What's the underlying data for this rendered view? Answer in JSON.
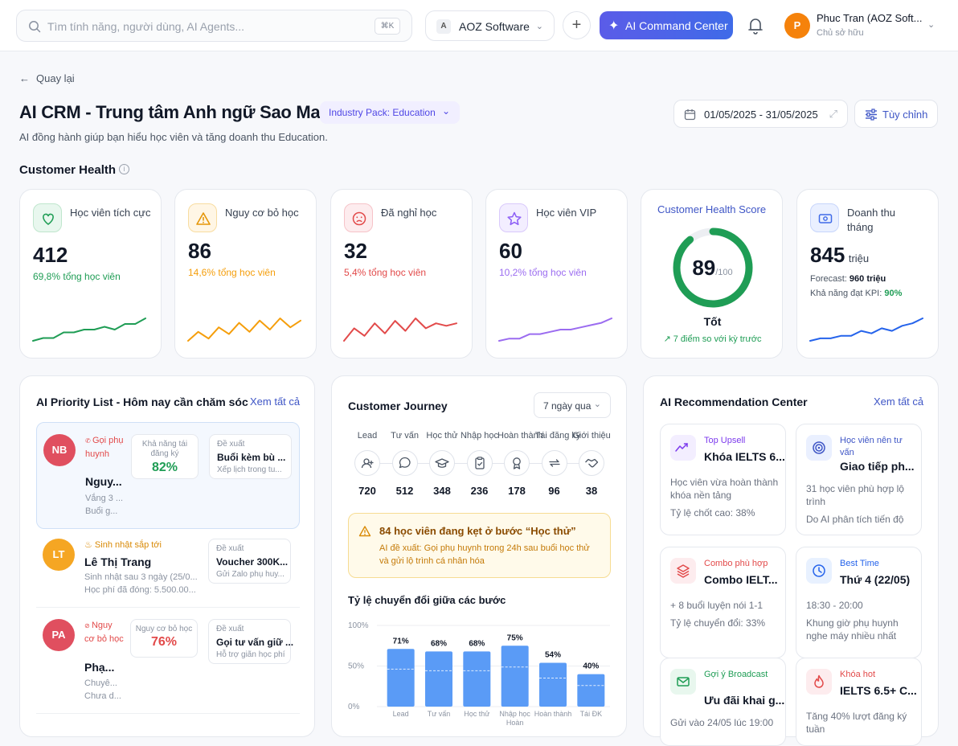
{
  "topbar": {
    "search_placeholder": "Tìm tính năng, người dùng, AI Agents...",
    "shortcut": "⌘K",
    "org_badge": "A",
    "org_name": "AOZ Software",
    "ai_button": "AI Command Center",
    "user_initial": "P",
    "user_name": "Phuc Tran (AOZ Soft...",
    "user_role": "Chủ sở hữu"
  },
  "header": {
    "back": "Quay lại",
    "title": "AI CRM - Trung tâm Anh ngữ Sao Mai",
    "industry_pack": "Industry Pack: Education",
    "subtitle": "AI đồng hành giúp bạn hiểu học viên và tăng doanh thu Education.",
    "date_range": "01/05/2025 - 31/05/2025",
    "customize": "Tùy chỉnh",
    "section": "Customer Health"
  },
  "metrics": [
    {
      "label": "Học viên tích cực",
      "value": "412",
      "sub": "69,8% tổng học viên",
      "color": "#1f9d55",
      "spark": [
        4,
        5,
        5,
        7,
        7,
        8,
        8,
        9,
        8,
        10,
        10,
        12
      ]
    },
    {
      "label": "Nguy cơ bỏ học",
      "value": "86",
      "sub": "14,6% tổng học viên",
      "color": "#f59e0b",
      "spark": [
        3,
        7,
        4,
        9,
        6,
        11,
        7,
        12,
        8,
        13,
        9,
        12
      ]
    },
    {
      "label": "Đã nghỉ học",
      "value": "32",
      "sub": "5,4% tổng học viên",
      "color": "#e24a4a",
      "spark": [
        3,
        8,
        5,
        10,
        6,
        11,
        7,
        12,
        8,
        10,
        9,
        10
      ]
    },
    {
      "label": "Học viên VIP",
      "value": "60",
      "sub": "10,2% tổng học viên",
      "color": "#9b6cf0",
      "spark": [
        3,
        4,
        4,
        6,
        6,
        7,
        8,
        8,
        9,
        10,
        11,
        13
      ]
    }
  ],
  "health_score": {
    "title": "Customer Health Score",
    "score": "89",
    "max": "/100",
    "score_value": 89,
    "label": "Tốt",
    "delta": "7 điểm so với kỳ trước"
  },
  "revenue": {
    "label": "Doanh thu tháng",
    "value": "845",
    "unit": "triệu",
    "forecast_label": "Forecast:",
    "forecast": "960 triệu",
    "kpi_label": "Khả năng đạt KPI:",
    "kpi": "90%",
    "spark": [
      3,
      4,
      4,
      5,
      5,
      7,
      6,
      8,
      7,
      9,
      10,
      12
    ]
  },
  "priority": {
    "title": "AI Priority List - Hôm nay cần chăm sóc",
    "see_all": "Xem tất cả",
    "rows": [
      {
        "initials": "NB",
        "tag": "Gọi phụ huynh",
        "name": "Nguy...",
        "line1": "Vắng 3 ...",
        "line2": "Buổi g...",
        "metric_label": "Khả năng tái đăng ký",
        "metric": "82%",
        "metric_color": "#1f9d55",
        "suggest_label": "Đề xuất",
        "suggest": "Buổi kèm bù ...",
        "suggest_sub": "Xếp lịch trong tu..."
      },
      {
        "initials": "LT",
        "tag": "Sinh nhật sắp tới",
        "name": "Lê Thị Trang",
        "line1": "Sinh nhật sau 3 ngày (25/0...",
        "line2": "Học phí đã đóng: 5.500.00...",
        "suggest_label": "Đề xuất",
        "suggest": "Voucher 300K...",
        "suggest_sub": "Gửi Zalo phụ huy..."
      },
      {
        "initials": "PA",
        "tag": "Nguy cơ bỏ học",
        "name": "Phạ...",
        "line1": "Chuyê...",
        "line2": "Chưa d...",
        "metric_label": "Nguy cơ bỏ học",
        "metric": "76%",
        "metric_color": "#e24a4a",
        "suggest_label": "Đề xuất",
        "suggest": "Gọi tư vấn giữ ...",
        "suggest_sub": "Hỗ trợ giãn học phí"
      }
    ]
  },
  "journey": {
    "title": "Customer Journey",
    "period": "7 ngày qua",
    "stages": [
      {
        "label": "Lead",
        "count": "720",
        "icon": "user-add-icon"
      },
      {
        "label": "Tư vấn",
        "count": "512",
        "icon": "chat-icon"
      },
      {
        "label": "Học thử",
        "count": "348",
        "icon": "graduation-cap-icon"
      },
      {
        "label": "Nhập học",
        "count": "236",
        "icon": "clipboard-check-icon"
      },
      {
        "label": "Hoàn thành",
        "count": "178",
        "icon": "award-icon"
      },
      {
        "label": "Tái đăng ký",
        "count": "96",
        "icon": "repeat-icon"
      },
      {
        "label": "Giới thiệu",
        "count": "38",
        "icon": "handshake-icon"
      }
    ],
    "alert_title": "84 học viên đang kẹt ở bước “Học thử”",
    "alert_text": "AI đề xuất: Gọi phụ huynh trong 24h sau buổi học thử và gửi lộ trình cá nhân hóa",
    "conversion_title": "Tỷ lệ chuyển đổi giữa các bước"
  },
  "chart_data": {
    "type": "bar",
    "title": "Tỷ lệ chuyển đổi giữa các bước",
    "categories": [
      "Lead → Tư vấn",
      "Tư vấn → Học thử",
      "Học thử → Nhập học",
      "Nhập học → Hoàn thành",
      "Hoàn thành → Tái ĐK",
      "Tái ĐK → Giới thiệu"
    ],
    "visible_labels": [
      "Lead",
      "Tư vấn",
      "Học thử",
      "Nhập học → Hoàn",
      "Hoàn thành",
      "Tái ĐK"
    ],
    "values": [
      71,
      68,
      68,
      75,
      54,
      40
    ],
    "value_labels": [
      "71%",
      "68%",
      "68%",
      "75%",
      "54%",
      "40%"
    ],
    "y_ticks": [
      "100%",
      "50%",
      "0%"
    ],
    "ylim": [
      0,
      100
    ],
    "grid": true,
    "color": "#5a9bf6"
  },
  "recommendations": {
    "title": "AI Recommendation Center",
    "see_all": "Xem tất cả",
    "items": [
      {
        "category": "Top Upsell",
        "cat_color": "#7c3aed",
        "bg": "#f3eeff",
        "icon": "trend-up-icon",
        "headline": "Khóa IELTS 6...",
        "desc": "Học viên vừa hoàn thành khóa nền tảng",
        "foot": "Tỷ lệ chốt cao: 38%"
      },
      {
        "category": "Học viên nên tư vấn",
        "cat_color": "#3f56c6",
        "bg": "#eaf0ff",
        "icon": "target-icon",
        "headline": "Giao tiếp ph...",
        "desc": "31 học viên phù hợp lộ trình",
        "foot": "Do AI phân tích tiến độ"
      },
      {
        "category": "Combo phù hợp",
        "cat_color": "#e24a4a",
        "bg": "#fdecee",
        "icon": "layers-icon",
        "headline": "Combo IELT...",
        "desc": "+ 8 buổi luyện nói 1-1",
        "foot": "Tỷ lệ chuyển đổi: 33%"
      },
      {
        "category": "Best Time",
        "cat_color": "#2563eb",
        "bg": "#e8f1ff",
        "icon": "clock-icon",
        "headline": "Thứ 4 (22/05)",
        "desc": "18:30 - 20:00",
        "foot": "Khung giờ phụ huynh nghe máy nhiều nhất"
      },
      {
        "category": "Gợi ý Broadcast",
        "cat_color": "#1f9d55",
        "bg": "#e8f7ee",
        "icon": "mail-icon",
        "headline": "Ưu đãi khai g...",
        "desc": "Gửi vào 24/05 lúc 19:00",
        "foot": ""
      },
      {
        "category": "Khóa hot",
        "cat_color": "#e24a4a",
        "bg": "#fdecee",
        "icon": "flame-icon",
        "headline": "IELTS 6.5+ C...",
        "desc": "Tăng 40% lượt đăng ký tuần",
        "foot": ""
      }
    ]
  }
}
